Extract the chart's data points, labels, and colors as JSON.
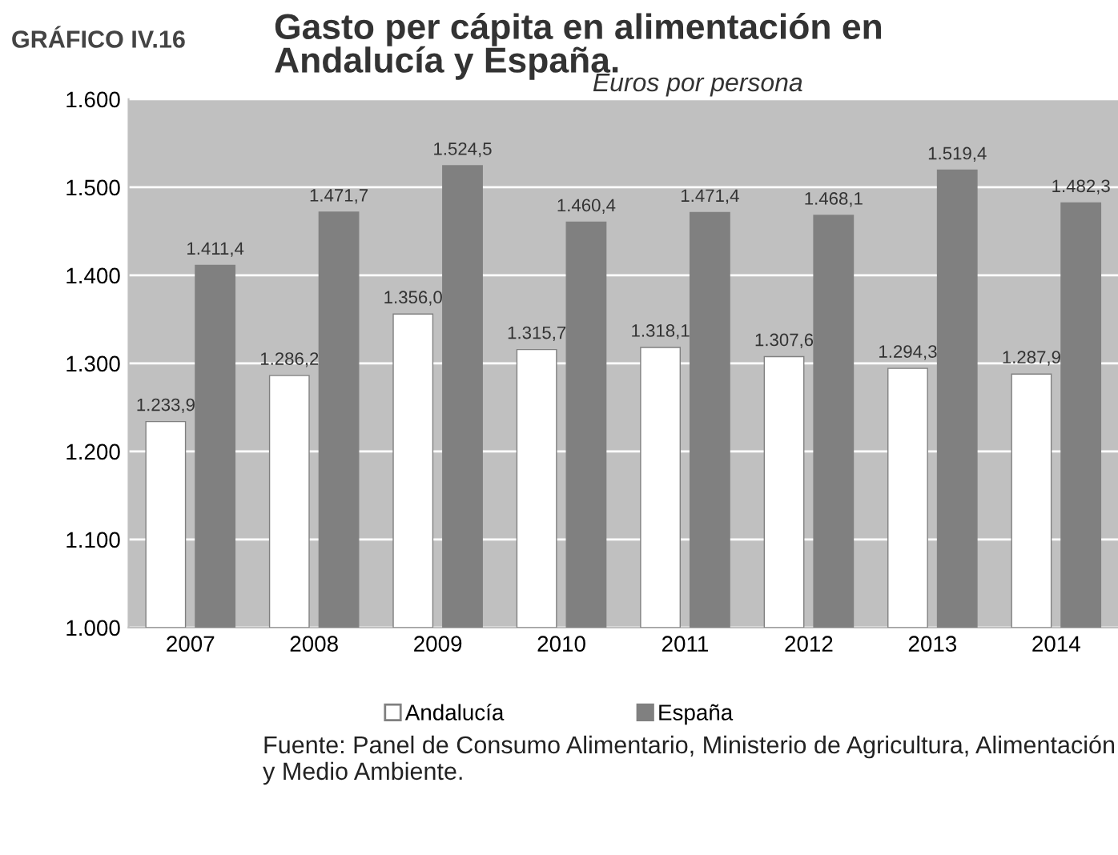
{
  "chart_data": {
    "type": "bar",
    "title": "Gasto per cápita en alimentación en\nAndalucía y España.",
    "subtitle": "Euros por persona",
    "categories": [
      "2007",
      "2008",
      "2009",
      "2010",
      "2011",
      "2012",
      "2013",
      "2014"
    ],
    "series": [
      {
        "name": "Andalucía",
        "color": "#ffffff",
        "values": [
          1233.9,
          1286.2,
          1356.0,
          1315.7,
          1318.1,
          1307.6,
          1294.3,
          1287.9
        ],
        "value_labels": [
          "1.233,9",
          "1.286,2",
          "1.356,0",
          "1.315,7",
          "1.318,1",
          "1.307,6",
          "1.294,3",
          "1.287,9"
        ]
      },
      {
        "name": "España",
        "color": "#808080",
        "values": [
          1411.4,
          1471.7,
          1524.5,
          1460.4,
          1471.4,
          1468.1,
          1519.4,
          1482.3
        ],
        "value_labels": [
          "1.411,4",
          "1.471,7",
          "1.524,5",
          "1.460,4",
          "1.471,4",
          "1.468,1",
          "1.519,4",
          "1.482,3"
        ]
      }
    ],
    "ylim": [
      1000,
      1600
    ],
    "yticks": [
      {
        "value": 1000,
        "label": "1.000"
      },
      {
        "value": 1100,
        "label": "1.100"
      },
      {
        "value": 1200,
        "label": "1.200"
      },
      {
        "value": 1300,
        "label": "1.300"
      },
      {
        "value": 1400,
        "label": "1.400"
      },
      {
        "value": 1500,
        "label": "1.500"
      },
      {
        "value": 1600,
        "label": "1.600"
      }
    ],
    "grid": "y",
    "legend": "bottom",
    "annotations": [
      "GRÁFICO IV.16",
      "Fuente: Panel de Consumo Alimentario, Ministerio de Agricultura, Alimentación y Medio Ambiente."
    ]
  }
}
